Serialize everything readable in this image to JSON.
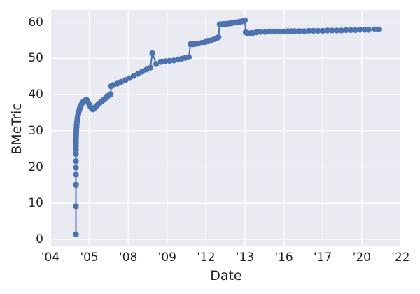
{
  "chart_data": {
    "type": "line",
    "title": "",
    "xlabel": "Date",
    "ylabel": "BMeTric",
    "markers": true,
    "legend": "none",
    "grid": true,
    "x_units": "tick_index",
    "x_axis": {
      "tick_labels": [
        "'04",
        "'05",
        "'08",
        "'09",
        "'12",
        "'13",
        "'16",
        "'17",
        "'20",
        "'22"
      ]
    },
    "y_axis": {
      "ticks": [
        0,
        10,
        20,
        30,
        40,
        50,
        60
      ],
      "ylim": [
        -1.9,
        63.4
      ]
    },
    "style": {
      "marker_color": "#4C72B0",
      "line_color": "#4C72B0",
      "plot_background": "#EAEAF2",
      "grid_color": "#FFFFFF",
      "text_color": "#262626",
      "figure_background": "#FFFFFF"
    },
    "points": [
      [
        0.657,
        1.4
      ],
      [
        0.657,
        9.2
      ],
      [
        0.657,
        15.1
      ],
      [
        0.657,
        17.9
      ],
      [
        0.657,
        19.8
      ],
      [
        0.657,
        21.6
      ],
      [
        0.657,
        23.6
      ],
      [
        0.657,
        24.8
      ],
      [
        0.657,
        25.8
      ],
      [
        0.657,
        26.6
      ],
      [
        0.657,
        27.3
      ],
      [
        0.659,
        28.1
      ],
      [
        0.662,
        28.9
      ],
      [
        0.665,
        29.6
      ],
      [
        0.668,
        30.3
      ],
      [
        0.672,
        31.0
      ],
      [
        0.677,
        31.7
      ],
      [
        0.683,
        32.4
      ],
      [
        0.69,
        33.0
      ],
      [
        0.7,
        33.7
      ],
      [
        0.71,
        34.3
      ],
      [
        0.722,
        34.9
      ],
      [
        0.735,
        35.5
      ],
      [
        0.75,
        36.0
      ],
      [
        0.765,
        36.5
      ],
      [
        0.78,
        36.9
      ],
      [
        0.8,
        37.3
      ],
      [
        0.82,
        37.7
      ],
      [
        0.845,
        38.0
      ],
      [
        0.87,
        38.2
      ],
      [
        0.9,
        38.4
      ],
      [
        0.925,
        38.6
      ],
      [
        0.95,
        38.3
      ],
      [
        0.99,
        37.5
      ],
      [
        1.03,
        36.6
      ],
      [
        1.07,
        36.0
      ],
      [
        1.1,
        35.9
      ],
      [
        1.14,
        36.3
      ],
      [
        1.18,
        36.8
      ],
      [
        1.22,
        37.2
      ],
      [
        1.26,
        37.6
      ],
      [
        1.31,
        38.0
      ],
      [
        1.35,
        38.4
      ],
      [
        1.4,
        38.8
      ],
      [
        1.44,
        39.2
      ],
      [
        1.48,
        39.6
      ],
      [
        1.52,
        39.9
      ],
      [
        1.55,
        40.1
      ],
      [
        1.56,
        42.3
      ],
      [
        1.62,
        42.6
      ],
      [
        1.72,
        43.0
      ],
      [
        1.82,
        43.5
      ],
      [
        1.93,
        44.0
      ],
      [
        2.03,
        44.5
      ],
      [
        2.14,
        45.1
      ],
      [
        2.25,
        45.7
      ],
      [
        2.36,
        46.3
      ],
      [
        2.47,
        46.9
      ],
      [
        2.57,
        47.4
      ],
      [
        2.62,
        51.4
      ],
      [
        2.72,
        48.4
      ],
      [
        2.84,
        49.0
      ],
      [
        2.95,
        49.2
      ],
      [
        3.06,
        49.3
      ],
      [
        3.17,
        49.4
      ],
      [
        3.28,
        49.7
      ],
      [
        3.38,
        49.9
      ],
      [
        3.47,
        50.1
      ],
      [
        3.56,
        50.3
      ],
      [
        3.6,
        53.9
      ],
      [
        3.66,
        53.9
      ],
      [
        3.74,
        54.0
      ],
      [
        3.82,
        54.1
      ],
      [
        3.9,
        54.3
      ],
      [
        3.98,
        54.5
      ],
      [
        4.06,
        54.7
      ],
      [
        4.14,
        55.0
      ],
      [
        4.22,
        55.3
      ],
      [
        4.28,
        55.6
      ],
      [
        4.32,
        55.8
      ],
      [
        4.35,
        59.4
      ],
      [
        4.4,
        59.4
      ],
      [
        4.46,
        59.5
      ],
      [
        4.52,
        59.5
      ],
      [
        4.58,
        59.6
      ],
      [
        4.64,
        59.7
      ],
      [
        4.7,
        59.8
      ],
      [
        4.76,
        59.9
      ],
      [
        4.82,
        60.0
      ],
      [
        4.87,
        60.1
      ],
      [
        4.92,
        60.2
      ],
      [
        4.96,
        60.3
      ],
      [
        5.0,
        60.5
      ],
      [
        5.02,
        57.2
      ],
      [
        5.06,
        56.9
      ],
      [
        5.12,
        56.9
      ],
      [
        5.2,
        57.0
      ],
      [
        5.3,
        57.2
      ],
      [
        5.4,
        57.3
      ],
      [
        5.52,
        57.3
      ],
      [
        5.64,
        57.4
      ],
      [
        5.76,
        57.4
      ],
      [
        5.88,
        57.4
      ],
      [
        6.0,
        57.4
      ],
      [
        6.1,
        57.5
      ],
      [
        6.2,
        57.5
      ],
      [
        6.28,
        57.5
      ],
      [
        6.4,
        57.5
      ],
      [
        6.52,
        57.5
      ],
      [
        6.64,
        57.6
      ],
      [
        6.76,
        57.6
      ],
      [
        6.88,
        57.6
      ],
      [
        7.0,
        57.6
      ],
      [
        7.12,
        57.7
      ],
      [
        7.24,
        57.7
      ],
      [
        7.36,
        57.7
      ],
      [
        7.48,
        57.7
      ],
      [
        7.6,
        57.8
      ],
      [
        7.72,
        57.8
      ],
      [
        7.84,
        57.8
      ],
      [
        7.96,
        57.9
      ],
      [
        8.08,
        57.9
      ],
      [
        8.18,
        57.9
      ],
      [
        8.33,
        58.0
      ],
      [
        8.4,
        58.0
      ],
      [
        8.45,
        58.0
      ]
    ]
  }
}
